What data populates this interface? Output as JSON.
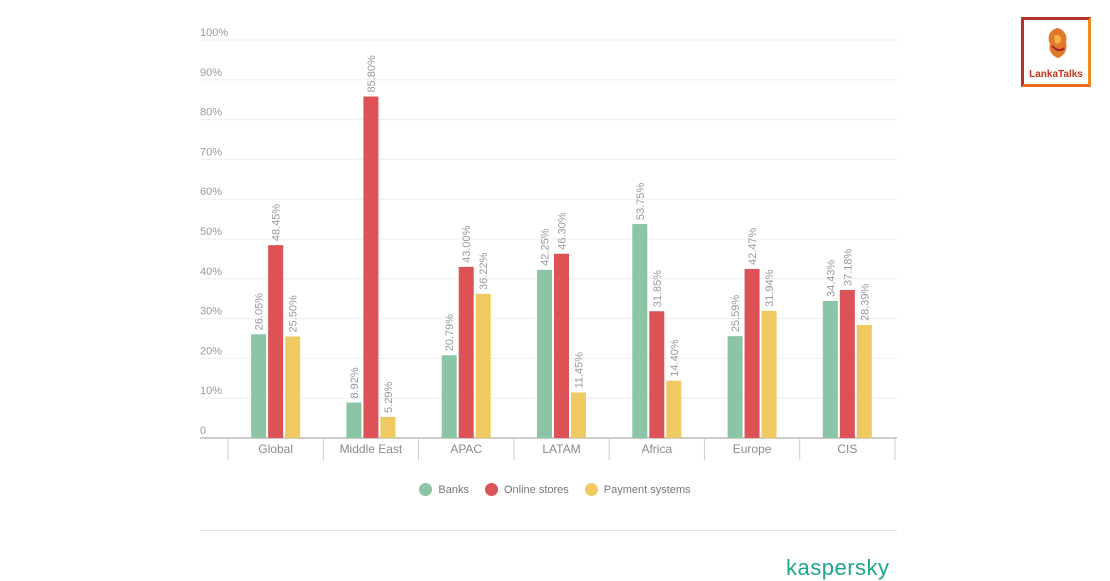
{
  "chart_data": {
    "type": "bar",
    "categories": [
      "Global",
      "Middle East",
      "APAC",
      "LATAM",
      "Africa",
      "Europe",
      "CIS"
    ],
    "series": [
      {
        "name": "Banks",
        "color": "#8cc4a6",
        "values": [
          26.05,
          8.92,
          20.79,
          42.25,
          53.75,
          25.59,
          34.43
        ],
        "labels": [
          "26.05%",
          "8.92%",
          "20.79%",
          "42.25%",
          "53.75%",
          "25.59%",
          "34.43%"
        ]
      },
      {
        "name": "Online stores",
        "color": "#dd5257",
        "values": [
          48.45,
          85.8,
          43.0,
          46.3,
          31.85,
          42.47,
          37.18
        ],
        "labels": [
          "48.45%",
          "85.80%",
          "43.00%",
          "46.30%",
          "31.85%",
          "42.47%",
          "37.18%"
        ]
      },
      {
        "name": "Payment systems",
        "color": "#efca63",
        "values": [
          25.5,
          5.29,
          36.22,
          11.45,
          14.4,
          31.94,
          28.39
        ],
        "labels": [
          "25.50%",
          "5.29%",
          "36.22%",
          "11.45%",
          "14.40%",
          "31.94%",
          "28.39%"
        ]
      }
    ],
    "ylim": [
      0,
      100
    ],
    "yticks": [
      "0",
      "10%",
      "20%",
      "30%",
      "40%",
      "50%",
      "60%",
      "70%",
      "80%",
      "90%",
      "100%"
    ],
    "grid": true,
    "legend_position": "bottom"
  },
  "brand": {
    "text": "kaspersky",
    "color": "#1da78d"
  },
  "watermark": {
    "text": "LankaTalks"
  }
}
